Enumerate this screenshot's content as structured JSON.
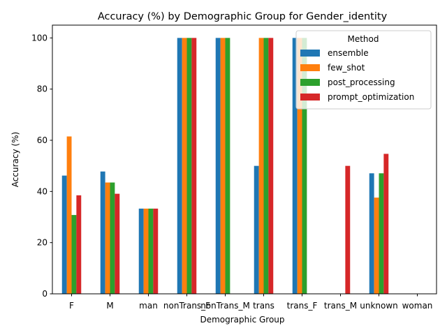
{
  "chart_data": {
    "type": "bar",
    "title": "Accuracy (%) by Demographic Group for Gender_identity",
    "xlabel": "Demographic Group",
    "ylabel": "Accuracy (%)",
    "ylim": [
      0,
      105
    ],
    "yticks": [
      0,
      20,
      40,
      60,
      80,
      100
    ],
    "grid": false,
    "legend_title": "Method",
    "legend_position": "top-right",
    "categories": [
      "F",
      "M",
      "man",
      "nonTrans_F",
      "nonTrans_M",
      "trans",
      "trans_F",
      "trans_M",
      "unknown",
      "woman"
    ],
    "series": [
      {
        "name": "ensemble",
        "color": "#1f77b4",
        "values": [
          46.2,
          47.8,
          33.3,
          100,
          100,
          50,
          100,
          null,
          47.1,
          null
        ]
      },
      {
        "name": "few_shot",
        "color": "#ff7f0e",
        "values": [
          61.5,
          43.5,
          33.3,
          100,
          100,
          100,
          100,
          null,
          37.6,
          null
        ]
      },
      {
        "name": "post_processing",
        "color": "#2ca02c",
        "values": [
          30.8,
          43.5,
          33.3,
          100,
          100,
          100,
          100,
          null,
          47.1,
          null
        ]
      },
      {
        "name": "prompt_optimization",
        "color": "#d62728",
        "values": [
          38.5,
          39.1,
          33.3,
          100,
          null,
          100,
          null,
          50,
          54.7,
          null
        ]
      }
    ]
  }
}
